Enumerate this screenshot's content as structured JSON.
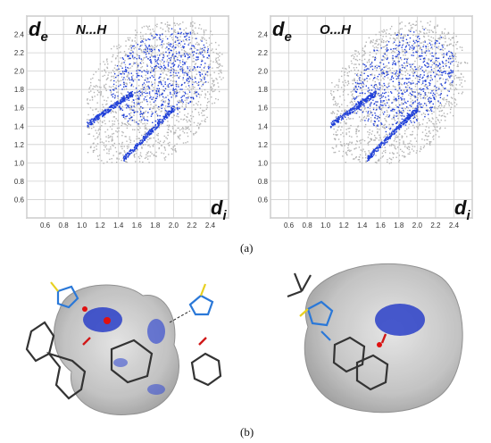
{
  "figure": {
    "caption_a": "(a)",
    "caption_b": "(b)"
  },
  "chart_data": [
    {
      "type": "scatter",
      "title": "N...H",
      "xlabel": "d",
      "xlabel_sub": "i",
      "ylabel": "d",
      "ylabel_sub": "e",
      "xlim": [
        0.4,
        2.6
      ],
      "ylim": [
        0.4,
        2.6
      ],
      "x_ticks": [
        "0.6",
        "0.8",
        "1.0",
        "1.2",
        "1.4",
        "1.6",
        "1.8",
        "2.0",
        "2.2",
        "2.4"
      ],
      "y_ticks": [
        "0.6",
        "0.8",
        "1.0",
        "1.2",
        "1.4",
        "1.6",
        "1.8",
        "2.0",
        "2.2",
        "2.4"
      ],
      "grid": true,
      "series": [
        {
          "color": "#b4b4b4"
        },
        {
          "color": "#1f3fd8"
        }
      ]
    },
    {
      "type": "scatter",
      "title": "O...H",
      "xlabel": "d",
      "xlabel_sub": "i",
      "ylabel": "d",
      "ylabel_sub": "e",
      "xlim": [
        0.4,
        2.6
      ],
      "ylim": [
        0.4,
        2.6
      ],
      "x_ticks": [
        "0.6",
        "0.8",
        "1.0",
        "1.2",
        "1.4",
        "1.6",
        "1.8",
        "2.0",
        "2.2",
        "2.4"
      ],
      "y_ticks": [
        "0.6",
        "0.8",
        "1.0",
        "1.2",
        "1.4",
        "1.6",
        "1.8",
        "2.0",
        "2.2",
        "2.4"
      ],
      "grid": true,
      "series": [
        {
          "color": "#b4b4b4"
        },
        {
          "color": "#1f3fd8"
        }
      ]
    }
  ]
}
